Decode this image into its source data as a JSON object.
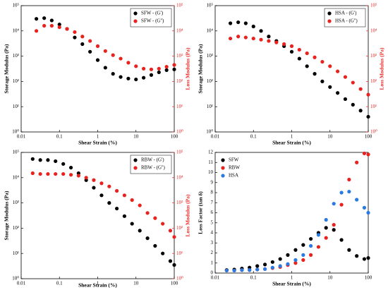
{
  "chart_data": [
    {
      "type": "scatter",
      "xlabel": "Shear Strain (%)",
      "ylabel": "Storage Modulus (Pa)",
      "y2label": "Loss Modulus (Pa)",
      "log_x": true,
      "log_y": true,
      "legend": "upper right",
      "y2color": "#e8231f",
      "xlim": [
        0.01,
        100
      ],
      "xticks": [
        0.01,
        0.1,
        1,
        10,
        100
      ],
      "ylim": [
        1,
        100000
      ],
      "yticks": [
        {
          "value": 1,
          "label": "10⁰"
        },
        {
          "value": 10,
          "label": "10¹"
        },
        {
          "value": 100,
          "label": "10²"
        },
        {
          "value": 1000,
          "label": "10³"
        },
        {
          "value": 10000,
          "label": "10⁴"
        },
        {
          "value": 100000,
          "label": "10⁵"
        }
      ],
      "y2lim": [
        1,
        100000
      ],
      "y2ticks": [
        {
          "value": 1,
          "label": "10⁰"
        },
        {
          "value": 10,
          "label": "10¹"
        },
        {
          "value": 100,
          "label": "10²"
        },
        {
          "value": 1000,
          "label": "10³"
        },
        {
          "value": 10000,
          "label": "10⁴"
        },
        {
          "value": 100000,
          "label": "10⁵"
        }
      ],
      "x": [
        0.025,
        0.04,
        0.063,
        0.1,
        0.158,
        0.251,
        0.398,
        0.631,
        1,
        1.585,
        2.512,
        3.981,
        6.31,
        10,
        15.85,
        25.12,
        39.81,
        63.1,
        100
      ],
      "series": [
        {
          "name": "SFW - (G')",
          "color": "#000000",
          "values": [
            30000,
            32000,
            26000,
            18000,
            12000,
            5500,
            3000,
            1500,
            700,
            350,
            200,
            150,
            130,
            120,
            140,
            180,
            230,
            280,
            300
          ]
        },
        {
          "name": "SFW - (G'')",
          "color": "#e8231f",
          "axis": "y2",
          "values": [
            10000,
            16000,
            16000,
            14000,
            12000,
            9000,
            6000,
            4000,
            2500,
            1600,
            1100,
            800,
            550,
            400,
            320,
            300,
            320,
            380,
            450
          ]
        }
      ]
    },
    {
      "type": "scatter",
      "xlabel": "Shear Strain (%)",
      "ylabel": "Storage Modulus (Pa)",
      "y2label": "Loss Modulus (Pa)",
      "log_x": true,
      "log_y": true,
      "legend": "upper right",
      "y2color": "#e8231f",
      "xlim": [
        0.01,
        100
      ],
      "xticks": [
        0.01,
        0.1,
        1,
        10,
        100
      ],
      "ylim": [
        1,
        100000
      ],
      "yticks": [
        {
          "value": 1,
          "label": "10⁰"
        },
        {
          "value": 10,
          "label": "10¹"
        },
        {
          "value": 100,
          "label": "10²"
        },
        {
          "value": 1000,
          "label": "10³"
        },
        {
          "value": 10000,
          "label": "10⁴"
        },
        {
          "value": 100000,
          "label": "10⁵"
        }
      ],
      "y2lim": [
        1,
        100000
      ],
      "y2ticks": [
        {
          "value": 1,
          "label": "10⁰"
        },
        {
          "value": 10,
          "label": "10¹"
        },
        {
          "value": 100,
          "label": "10²"
        },
        {
          "value": 1000,
          "label": "10³"
        },
        {
          "value": 10000,
          "label": "10⁴"
        },
        {
          "value": 100000,
          "label": "10⁵"
        }
      ],
      "x": [
        0.025,
        0.04,
        0.063,
        0.1,
        0.158,
        0.251,
        0.398,
        0.631,
        1,
        1.585,
        2.512,
        3.981,
        6.31,
        10,
        15.85,
        25.12,
        39.81,
        63.1,
        100
      ],
      "series": [
        {
          "name": "HSA - (G')",
          "color": "#000000",
          "values": [
            20000,
            22000,
            20000,
            15000,
            10000,
            6000,
            4000,
            2500,
            1500,
            800,
            400,
            200,
            100,
            60,
            35,
            20,
            12,
            7,
            4
          ]
        },
        {
          "name": "HSA - (G'')",
          "color": "#e8231f",
          "axis": "y2",
          "values": [
            5000,
            6000,
            5500,
            5000,
            4500,
            4000,
            3500,
            3000,
            2500,
            1800,
            1300,
            900,
            600,
            400,
            250,
            150,
            90,
            50,
            30
          ]
        }
      ]
    },
    {
      "type": "scatter",
      "xlabel": "Shear Strain (%)",
      "ylabel": "Storage Modulus (Pa)",
      "y2label": "Loss Modulus (Pa)",
      "log_x": true,
      "log_y": true,
      "legend": "upper right",
      "y2color": "#e8231f",
      "xlim": [
        0.01,
        100
      ],
      "xticks": [
        0.01,
        0.1,
        1,
        10,
        100
      ],
      "ylim": [
        1,
        100000
      ],
      "yticks": [
        {
          "value": 1,
          "label": "10⁰"
        },
        {
          "value": 10,
          "label": "10¹"
        },
        {
          "value": 100,
          "label": "10²"
        },
        {
          "value": 1000,
          "label": "10³"
        },
        {
          "value": 10000,
          "label": "10⁴"
        },
        {
          "value": 100000,
          "label": "10⁵"
        }
      ],
      "y2lim": [
        1,
        100000
      ],
      "y2ticks": [
        {
          "value": 1,
          "label": "10⁰"
        },
        {
          "value": 10,
          "label": "10¹"
        },
        {
          "value": 100,
          "label": "10²"
        },
        {
          "value": 1000,
          "label": "10³"
        },
        {
          "value": 10000,
          "label": "10⁴"
        },
        {
          "value": 100000,
          "label": "10⁵"
        }
      ],
      "x": [
        0.02,
        0.0316,
        0.05,
        0.079,
        0.126,
        0.2,
        0.316,
        0.5,
        0.79,
        1.26,
        2,
        3.16,
        5,
        7.9,
        12.6,
        20,
        31.6,
        50,
        79,
        100
      ],
      "series": [
        {
          "name": "RBW - (G')",
          "color": "#000000",
          "values": [
            55000,
            50000,
            50000,
            45000,
            35000,
            25000,
            15000,
            8000,
            4000,
            2000,
            1000,
            600,
            300,
            150,
            80,
            40,
            20,
            10,
            5,
            3.5
          ]
        },
        {
          "name": "RBW - (G'')",
          "color": "#e8231f",
          "axis": "y2",
          "values": [
            15000,
            14000,
            14000,
            14000,
            14000,
            13000,
            12000,
            10000,
            8000,
            6000,
            4500,
            3000,
            2000,
            1300,
            800,
            400,
            250,
            150,
            80,
            45
          ]
        }
      ]
    },
    {
      "type": "scatter",
      "xlabel": "Shear Strain (%)",
      "ylabel": "Loss Factor (tan δ)",
      "log_x": true,
      "log_y": false,
      "legend": "upper left",
      "xlim": [
        0.01,
        100
      ],
      "xticks": [
        0.01,
        0.1,
        1,
        10,
        100
      ],
      "ylim": [
        0,
        12
      ],
      "yticks": [
        0,
        1,
        2,
        3,
        4,
        5,
        6,
        7,
        8,
        9,
        10,
        11,
        12
      ],
      "x": [
        0.02,
        0.0316,
        0.05,
        0.079,
        0.126,
        0.2,
        0.316,
        0.5,
        0.79,
        1.26,
        2,
        3.16,
        5,
        7.9,
        12.6,
        20,
        31.6,
        50,
        79,
        100
      ],
      "series": [
        {
          "name": "SFW",
          "color": "#000000",
          "values": [
            0.3,
            0.35,
            0.45,
            0.55,
            0.7,
            0.85,
            1.1,
            1.4,
            1.8,
            2.3,
            2.8,
            3.4,
            4,
            4.5,
            4.3,
            3.3,
            2.3,
            1.7,
            1.4,
            1.5
          ]
        },
        {
          "name": "RBW",
          "color": "#e8231f",
          "values": [
            0.25,
            0.25,
            0.3,
            0.3,
            0.35,
            0.4,
            0.5,
            0.6,
            0.8,
            1,
            1.3,
            1.8,
            2.6,
            3.5,
            4.8,
            6.8,
            9.3,
            11,
            11.9,
            11.8
          ]
        },
        {
          "name": "HSA",
          "color": "#2a7ae4",
          "values": [
            0.25,
            0.25,
            0.3,
            0.3,
            0.35,
            0.4,
            0.55,
            0.7,
            0.9,
            1.3,
            1.8,
            2.7,
            3.8,
            5.3,
            6.9,
            8,
            8.1,
            7.3,
            6.5,
            6
          ]
        }
      ]
    }
  ]
}
